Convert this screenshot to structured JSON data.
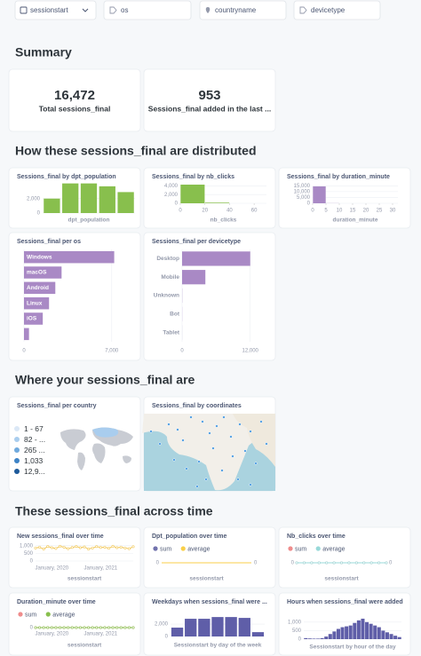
{
  "filters": [
    "sessionstart",
    "os",
    "countryname",
    "devicetype"
  ],
  "sections": [
    {
      "title": "Summary",
      "cards": [
        {
          "type": "scalar",
          "value": "16,472",
          "label": "Total sessions_final"
        },
        {
          "type": "scalar",
          "value": "953",
          "label": "Sessions_final added in the last ..."
        }
      ]
    },
    {
      "title": "How these sessions_final are distributed",
      "cards": [
        {
          "type": "column",
          "title": "Sessions_final by dpt_population",
          "x_label": "dpt_population",
          "color": "#88bf4d",
          "values": [
            2000,
            4100,
            4100,
            3700,
            2900
          ],
          "ylim": [
            0,
            4300
          ],
          "yticks": [
            0,
            {
              "value": 2000,
              "label": "2,000"
            }
          ]
        },
        {
          "type": "histogram",
          "title": "Sessions_final by nb_clicks",
          "x_label": "nb_clicks",
          "color": "#88bf4d",
          "bins": [
            0,
            20,
            40,
            60
          ],
          "values": [
            4300,
            150,
            0
          ],
          "xlim": [
            0,
            70
          ],
          "xticks": [
            0,
            20,
            40,
            60
          ],
          "ylim": [
            0,
            4500
          ],
          "yticks": [
            0,
            {
              "value": 2000,
              "label": "2,000"
            },
            {
              "value": 4000,
              "label": "4,000"
            }
          ]
        },
        {
          "type": "histogram",
          "title": "Sessions_final by duration_minute",
          "x_label": "duration_minute",
          "color": "#a989c5",
          "bins": [
            0,
            5,
            10,
            15,
            20,
            25,
            30
          ],
          "values": [
            14500,
            100,
            0,
            0,
            0,
            0
          ],
          "xlim": [
            0,
            32
          ],
          "xticks": [
            0,
            5,
            10,
            15,
            20,
            25,
            30
          ],
          "ylim": [
            0,
            16000
          ],
          "yticks": [
            0,
            {
              "value": 5000,
              "label": "5,000"
            },
            {
              "value": 10000,
              "label": "10,000"
            },
            {
              "value": 15000,
              "label": "15,000"
            }
          ]
        },
        {
          "type": "hbar",
          "title": "Sessions_final per os",
          "color": "#a989c5",
          "label_position": "inside",
          "categories": [
            "Windows",
            "macOS",
            "Android",
            "Linux",
            "iOS",
            null
          ],
          "values": [
            7200,
            3000,
            2500,
            2000,
            1500,
            400
          ],
          "xlim": [
            0,
            7300
          ],
          "xticks": [
            0,
            {
              "value": 7000,
              "label": "7,000"
            }
          ]
        },
        {
          "type": "hbar",
          "title": "Sessions_final per devicetype",
          "color": "#a989c5",
          "label_position": "outside",
          "categories": [
            "Desktop",
            "Mobile",
            "Unknown",
            "Bot",
            "Tablet"
          ],
          "values": [
            12000,
            4100,
            30,
            20,
            10
          ],
          "xlim": [
            0,
            12200
          ],
          "xticks": [
            0,
            {
              "value": 12000,
              "label": "12,000"
            }
          ]
        }
      ]
    },
    {
      "title": "Where your sessions_final are",
      "cards": [
        {
          "type": "region",
          "title": "Sessions_final per country",
          "legend": [
            {
              "label": "1 - 67",
              "color": "#dbe8f6"
            },
            {
              "label": "82 - ...",
              "color": "#a9cdee"
            },
            {
              "label": "265 ...",
              "color": "#6fa9dd"
            },
            {
              "label": "1,033",
              "color": "#3d83c6"
            },
            {
              "label": "12,9...",
              "color": "#1d5a9a"
            }
          ]
        },
        {
          "type": "pins",
          "title": "Sessions_final by coordinates"
        }
      ]
    },
    {
      "title": "These sessions_final across time",
      "cards": [
        {
          "type": "line",
          "title": "New sessions_final over time",
          "x_label": "sessionstart",
          "markers": true,
          "categories": [
            null,
            null,
            null,
            null,
            "January, 2020",
            null,
            null,
            null,
            null,
            null,
            null,
            null,
            null,
            null,
            null,
            null,
            "January, 2021",
            null,
            null,
            null,
            null,
            null,
            null,
            null,
            null
          ],
          "series": [
            {
              "color": "#f2c85a",
              "values": [
                850,
                900,
                780,
                950,
                870,
                820,
                960,
                900,
                800,
                880,
                950,
                870,
                920,
                780,
                850,
                940,
                880,
                900,
                830,
                960,
                870,
                900,
                850,
                800,
                930
              ]
            }
          ],
          "ylim": [
            0,
            1100
          ],
          "yticks": [
            0,
            500,
            {
              "value": 1000,
              "label": "1,000"
            }
          ]
        },
        {
          "type": "line",
          "title": "Dpt_population over time",
          "x_label": "sessionstart",
          "markers": false,
          "series": [
            {
              "name": "sum",
              "color": "#7172ad",
              "axis": "y2",
              "values": [
                0,
                0,
                0,
                0,
                0,
                0,
                0,
                0,
                0,
                0,
                0,
                0,
                0
              ]
            },
            {
              "name": "average",
              "color": "#f9cf48",
              "values": [
                0,
                0,
                0,
                0,
                0,
                0,
                0,
                0,
                0,
                0,
                0,
                0,
                0
              ]
            }
          ],
          "ylim": [
            0,
            1
          ],
          "yticks": [
            0
          ],
          "y2lim": [
            0,
            1
          ],
          "y2ticks": [
            0
          ]
        },
        {
          "type": "line",
          "title": "Nb_clicks over time",
          "x_label": "sessionstart",
          "markers": true,
          "series": [
            {
              "name": "sum",
              "color": "#ef8c8c",
              "axis": "y2",
              "values": [
                0,
                0,
                0,
                0,
                0,
                0,
                0,
                0,
                0,
                0,
                0,
                0,
                0
              ]
            },
            {
              "name": "average",
              "color": "#98d9d9",
              "values": [
                0,
                0,
                0,
                0,
                0,
                0,
                0,
                0,
                0,
                0,
                0,
                0,
                0
              ]
            }
          ],
          "ylim": [
            0,
            1
          ],
          "yticks": [
            0
          ],
          "y2lim": [
            0,
            1
          ],
          "y2ticks": [
            0
          ]
        },
        {
          "type": "line",
          "title": "Duration_minute over time",
          "x_label": "sessionstart",
          "markers": true,
          "categories": [
            null,
            null,
            null,
            null,
            "January, 2020",
            null,
            null,
            null,
            null,
            null,
            null,
            null,
            null,
            null,
            null,
            null,
            "January, 2021",
            null,
            null,
            null,
            null,
            null,
            null,
            null,
            null
          ],
          "series": [
            {
              "name": "sum",
              "color": "#ef8c8c",
              "axis": "y2",
              "values": [
                0,
                0,
                0,
                0,
                0,
                0,
                0,
                0,
                0,
                0,
                0,
                0,
                0,
                0,
                0,
                0,
                0,
                0,
                0,
                0,
                0,
                0,
                0,
                0,
                0
              ]
            },
            {
              "name": "average",
              "color": "#88bf4d",
              "values": [
                0,
                0,
                0,
                0,
                0,
                0,
                0,
                0,
                0,
                0,
                0,
                0,
                0,
                0,
                0,
                0,
                0,
                0,
                0,
                0,
                0,
                0,
                0,
                0,
                0
              ]
            }
          ],
          "ylim": [
            0,
            1
          ],
          "yticks": [
            0
          ],
          "y2lim": [
            0,
            1
          ]
        },
        {
          "type": "column",
          "title": "Weekdays when sessions_final were ...",
          "x_label": "Sessionstart by day of the week",
          "color": "#5f5ea8",
          "values": [
            1430,
            2860,
            2860,
            3140,
            3140,
            3000,
            700
          ],
          "ylim": [
            0,
            3300
          ],
          "yticks": [
            0,
            {
              "value": 2000,
              "label": "2,000"
            }
          ]
        },
        {
          "type": "column",
          "title": "Hours when sessions_final were added",
          "x_label": "Sessionstart by hour of the day",
          "color": "#5f5ea8",
          "values": [
            60,
            40,
            30,
            30,
            60,
            150,
            300,
            450,
            600,
            700,
            750,
            800,
            950,
            1100,
            1200,
            1000,
            900,
            800,
            700,
            500,
            400,
            300,
            200,
            120
          ],
          "ylim": [
            0,
            1250
          ],
          "yticks": [
            0,
            500,
            {
              "value": 1000,
              "label": "1,000"
            }
          ]
        }
      ]
    }
  ]
}
